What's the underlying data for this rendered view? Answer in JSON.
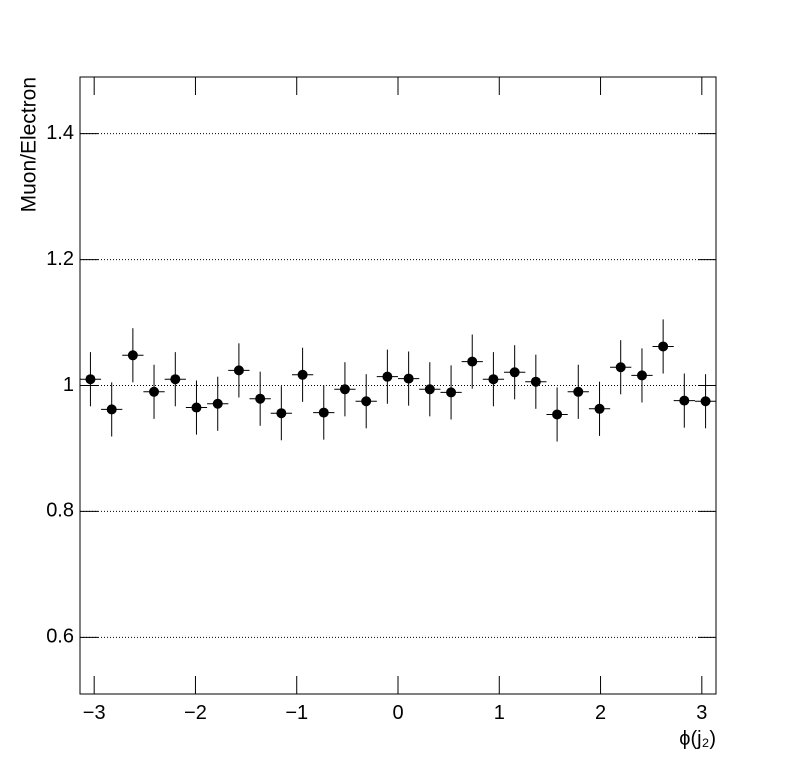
{
  "chart_data": {
    "type": "scatter",
    "xlabel": "ϕ(j₂)",
    "ylabel": "Muon/Electron",
    "x": [
      -3.037,
      -2.827,
      -2.618,
      -2.409,
      -2.199,
      -1.99,
      -1.78,
      -1.571,
      -1.361,
      -1.152,
      -0.942,
      -0.733,
      -0.524,
      -0.314,
      -0.105,
      0.105,
      0.314,
      0.524,
      0.733,
      0.942,
      1.152,
      1.361,
      1.571,
      1.78,
      1.99,
      2.199,
      2.409,
      2.618,
      2.827,
      3.037
    ],
    "series": [
      {
        "name": "Muon/Electron",
        "color": "#000000",
        "values": [
          1.01,
          0.962,
          1.048,
          0.99,
          1.01,
          0.965,
          0.971,
          1.024,
          0.979,
          0.956,
          1.017,
          0.957,
          0.994,
          0.975,
          1.014,
          1.011,
          0.994,
          0.989,
          1.038,
          1.01,
          1.021,
          1.006,
          0.954,
          0.99,
          0.963,
          1.029,
          1.016,
          1.062,
          0.976,
          0.975
        ],
        "errors": [
          0.043,
          0.043,
          0.043,
          0.043,
          0.043,
          0.043,
          0.043,
          0.043,
          0.043,
          0.043,
          0.043,
          0.043,
          0.043,
          0.043,
          0.043,
          0.043,
          0.043,
          0.043,
          0.043,
          0.043,
          0.043,
          0.043,
          0.043,
          0.043,
          0.043,
          0.043,
          0.043,
          0.043,
          0.043,
          0.043
        ]
      }
    ],
    "xerr": 0.105,
    "xlim": [
      -3.14,
      3.14
    ],
    "ylim": [
      0.51,
      1.49
    ],
    "xticks": [
      {
        "value": -3,
        "label": "−3"
      },
      {
        "value": -2,
        "label": "−2"
      },
      {
        "value": -1,
        "label": "−1"
      },
      0,
      1,
      2,
      3
    ],
    "yticks": [
      0.6,
      0.8,
      1,
      1.2,
      1.4
    ],
    "grid": true
  }
}
